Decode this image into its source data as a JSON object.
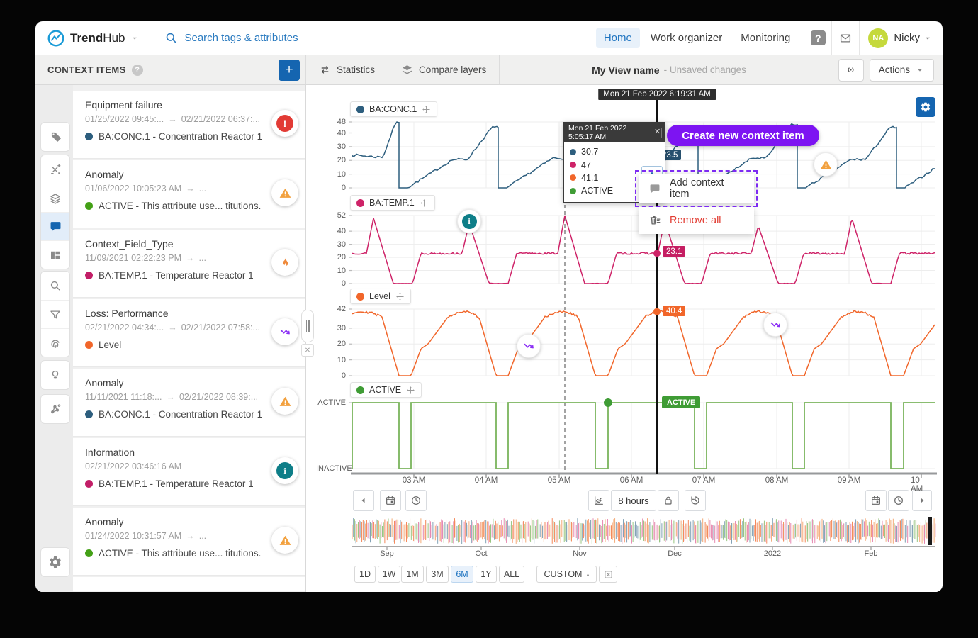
{
  "navbar": {
    "brand_a": "Trend",
    "brand_b": "Hub",
    "search_placeholder": "Search tags & attributes",
    "tabs": [
      {
        "label": "Home",
        "active": true
      },
      {
        "label": "Work organizer",
        "active": false
      },
      {
        "label": "Monitoring",
        "active": false
      }
    ],
    "user": {
      "initials": "NA",
      "name": "Nicky"
    }
  },
  "toolbar": {
    "panel_title": "CONTEXT ITEMS",
    "tabs": [
      {
        "label": "Statistics",
        "icon": "swap-icon"
      },
      {
        "label": "Compare layers",
        "icon": "compare-layers-icon"
      }
    ],
    "view_name": "My View name",
    "view_status": "- Unsaved changes",
    "actions_label": "Actions"
  },
  "sidebar": {
    "groups": [
      [
        {
          "icon": "tag",
          "active": false
        }
      ],
      [
        {
          "icon": "formula",
          "active": false
        },
        {
          "icon": "layers",
          "active": false
        },
        {
          "icon": "comment",
          "active": true
        },
        {
          "icon": "dashboard",
          "active": false
        }
      ],
      [
        {
          "icon": "search",
          "active": false
        },
        {
          "icon": "filter",
          "active": false
        },
        {
          "icon": "fingerprint",
          "active": false
        }
      ],
      [
        {
          "icon": "bulb",
          "active": false
        }
      ],
      [
        {
          "icon": "experiment",
          "active": false
        }
      ]
    ],
    "bottom_icon": "settings"
  },
  "context_items": [
    {
      "title": "Equipment failure",
      "date_start": "01/25/2022 09:45:...",
      "date_end": "02/21/2022 06:37:...",
      "tag": "BA:CONC.1 - Concentration Reactor 1",
      "tag_color": "#2d5e7e",
      "badge": "error"
    },
    {
      "title": "Anomaly",
      "date_start": "01/06/2022 10:05:23 AM",
      "date_end": "...",
      "tag": "ACTIVE - This attribute use... titutions.",
      "tag_color": "#43a016",
      "badge": "warning"
    },
    {
      "title": "Context_Field_Type",
      "date_start": "11/09/2021 02:22:23 PM",
      "date_end": "...",
      "tag": "BA:TEMP.1 - Temperature Reactor 1",
      "tag_color": "#c21e67",
      "badge": "flame"
    },
    {
      "title": "Loss: Performance",
      "date_start": "02/21/2022 04:34:...",
      "date_end": "02/21/2022 07:58:...",
      "tag": "Level",
      "tag_color": "#f1662a",
      "badge": "loss"
    },
    {
      "title": "Anomaly",
      "date_start": "11/11/2021 11:18:...",
      "date_end": "02/21/2022 08:39:...",
      "tag": "BA:CONC.1 - Concentration Reactor 1",
      "tag_color": "#2d5e7e",
      "badge": "warning"
    },
    {
      "title": "Information",
      "date_start": "02/21/2022 03:46:16 AM",
      "date_end": "",
      "tag": "BA:TEMP.1 - Temperature Reactor 1",
      "tag_color": "#c21e67",
      "badge": "info"
    },
    {
      "title": "Anomaly",
      "date_start": "01/24/2022 10:31:57 AM",
      "date_end": "...",
      "tag": "ACTIVE - This attribute use... titutions.",
      "tag_color": "#43a016",
      "badge": "warning"
    }
  ],
  "chart": {
    "cursor_time": "Mon 21 Feb 2022 6:19:31 AM",
    "tooltip": {
      "time": "Mon 21 Feb 2022 5:05:17 AM",
      "values": [
        {
          "color": "#2d5e7e",
          "value": "30.7"
        },
        {
          "color": "#ce2368",
          "value": "47"
        },
        {
          "color": "#f1662a",
          "value": "41.1"
        },
        {
          "color": "#3f9c35",
          "value": "ACTIVE"
        }
      ]
    },
    "create_button_label": "Create new context item",
    "menu": {
      "item1": "Add context item",
      "item2": "Remove all"
    },
    "charts": [
      {
        "id": "conc",
        "legend": "BA:CONC.1",
        "color": "#2d5e7e",
        "chip_color": "#27506e",
        "y_ticks": [
          "48",
          "40",
          "30",
          "20",
          "10",
          "0"
        ],
        "cursor_value": "23.5"
      },
      {
        "id": "temp",
        "legend": "BA:TEMP.1",
        "color": "#ce2368",
        "chip_color": "#c51e62",
        "y_ticks": [
          "52",
          "40",
          "30",
          "20",
          "10",
          "0"
        ],
        "cursor_value": "23.1"
      },
      {
        "id": "level",
        "legend": "Level",
        "color": "#f1662a",
        "chip_color": "#f1662a",
        "y_ticks": [
          "42",
          "30",
          "20",
          "10",
          "0"
        ],
        "cursor_value": "40.4"
      },
      {
        "id": "active",
        "legend": "ACTIVE",
        "color": "#7ab45c",
        "dot_color": "#3f9c35",
        "y_ticks": [
          "ACTIVE",
          "INACTIVE"
        ],
        "cursor_value": "ACTIVE"
      }
    ],
    "x_ticks": [
      "03 AM",
      "04 AM",
      "05 AM",
      "06 AM",
      "07 AM",
      "08 AM",
      "09 AM",
      "10 AM"
    ]
  },
  "chart_data": {
    "type": "line",
    "x_ticks": [
      "03 AM",
      "04 AM",
      "05 AM",
      "06 AM",
      "07 AM",
      "08 AM",
      "09 AM",
      "10 AM"
    ],
    "series": [
      {
        "name": "BA:CONC.1",
        "ylim": [
          0,
          48
        ],
        "pattern": "noisy staircase ramp from 0 to ~44-48 then instant drop to 0, period ~82 min",
        "value_at_cursor": 23.5
      },
      {
        "name": "BA:TEMP.1",
        "ylim": [
          0,
          52
        ],
        "pattern": "plateau ~23 with sharp spikes to 44-52 and flat dips to 0, period ~80 min",
        "value_at_cursor": 23.1
      },
      {
        "name": "Level",
        "ylim": [
          0,
          42
        ],
        "pattern": "rounded trapezoid waves 0 to ~40 to 0, period ~81 min",
        "value_at_cursor": 40.4
      },
      {
        "name": "ACTIVE",
        "states": [
          "ACTIVE",
          "INACTIVE"
        ],
        "pattern": "mostly ACTIVE with ~10 min INACTIVE dips once per cycle",
        "value_at_cursor": "ACTIVE"
      }
    ],
    "legend_position": "top-left of each stacked subplot"
  },
  "timebar": {
    "duration_label": "8 hours",
    "overview_labels": [
      "Sep",
      "Oct",
      "Nov",
      "Dec",
      "2022",
      "Feb"
    ]
  },
  "zoom_presets": {
    "options": [
      "1D",
      "1W",
      "1M",
      "3M",
      "6M",
      "1Y",
      "ALL"
    ],
    "active": "6M",
    "custom_label": "CUSTOM"
  }
}
